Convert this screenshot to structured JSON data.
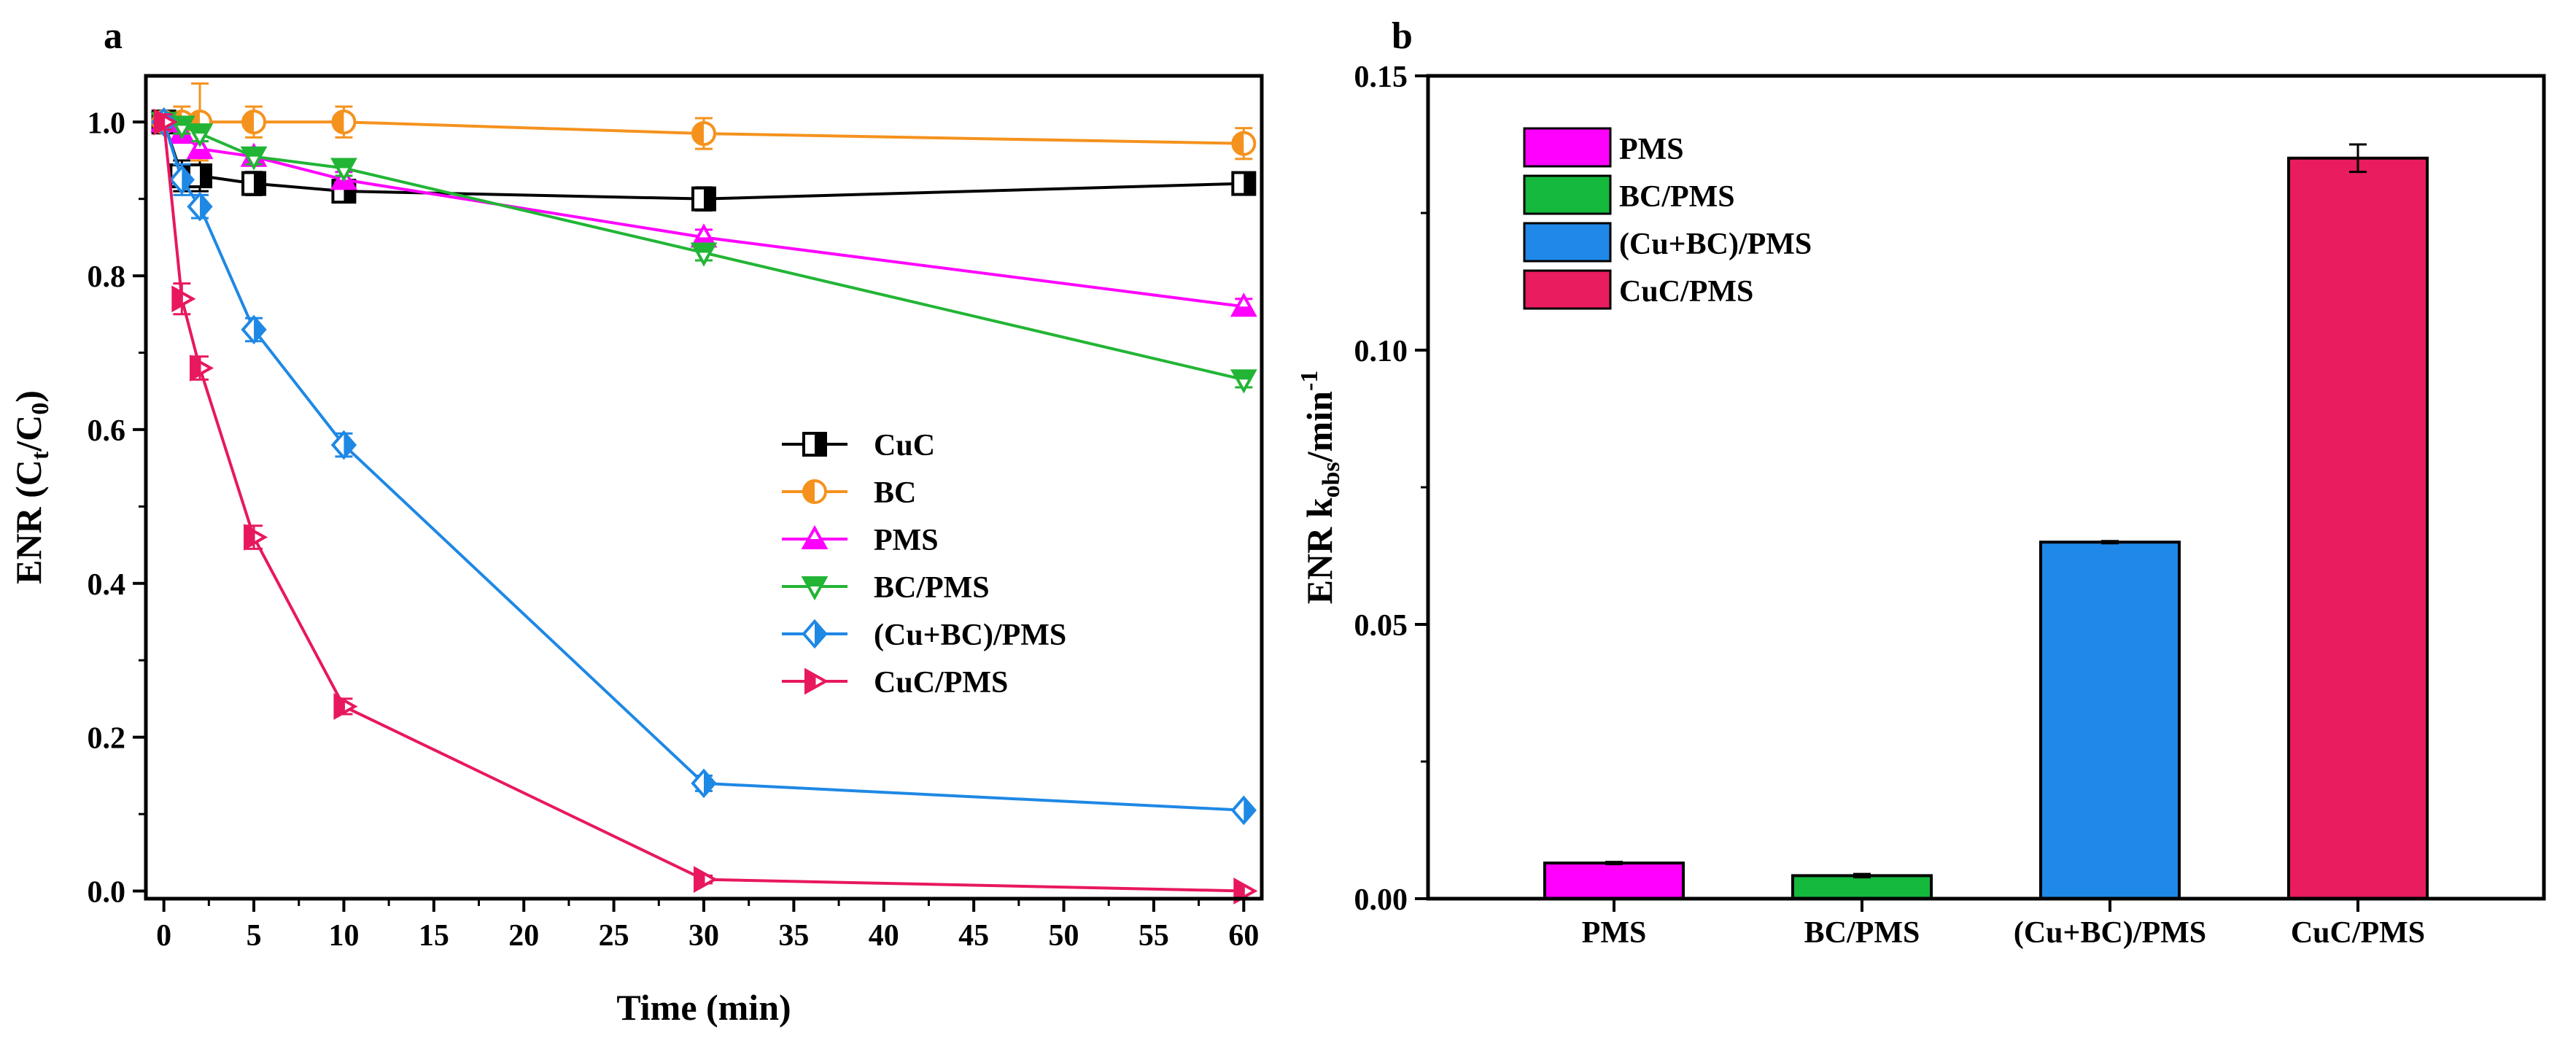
{
  "chart_data": [
    {
      "panel": "a",
      "type": "line",
      "xlabel": "Time (min)",
      "ylabel": "ENR (C",
      "ylabel_sub1": "t",
      "ylabel_mid": "/C",
      "ylabel_sub2": "0",
      "ylabel_end": ")",
      "xlim": [
        -1,
        61
      ],
      "ylim": [
        -0.01,
        1.06
      ],
      "xticks": [
        0,
        5,
        10,
        15,
        20,
        25,
        30,
        35,
        40,
        45,
        50,
        55,
        60
      ],
      "yticks": [
        0.0,
        0.2,
        0.4,
        0.6,
        0.8,
        1.0
      ],
      "ytick_labels": [
        "0.0",
        "0.2",
        "0.4",
        "0.6",
        "0.8",
        "1.0"
      ],
      "legend_position": "center-right",
      "series": [
        {
          "name": "CuC",
          "color": "#000000",
          "marker": "square-half",
          "x": [
            0,
            1,
            2,
            5,
            10,
            30,
            60
          ],
          "y": [
            1.0,
            0.93,
            0.93,
            0.92,
            0.91,
            0.9,
            0.92
          ],
          "err": [
            0.01,
            0.02,
            0.02,
            0.015,
            0.01,
            0.015,
            0.01
          ]
        },
        {
          "name": "BC",
          "color": "#f5921e",
          "marker": "circle-half",
          "x": [
            0,
            1,
            2,
            5,
            10,
            30,
            60
          ],
          "y": [
            1.0,
            1.0,
            1.0,
            1.0,
            1.0,
            0.985,
            0.972
          ],
          "err": [
            0.01,
            0.02,
            0.05,
            0.02,
            0.02,
            0.02,
            0.02
          ]
        },
        {
          "name": "PMS",
          "color": "#ff00ff",
          "marker": "triangle-up-half",
          "x": [
            0,
            1,
            2,
            5,
            10,
            30,
            60
          ],
          "y": [
            1.0,
            0.985,
            0.965,
            0.955,
            0.925,
            0.85,
            0.76
          ],
          "err": [
            0.01,
            0.01,
            0.01,
            0.01,
            0.01,
            0.01,
            0.01
          ]
        },
        {
          "name": "BC/PMS",
          "color": "#22b535",
          "marker": "triangle-down-half",
          "x": [
            0,
            1,
            2,
            5,
            10,
            30,
            60
          ],
          "y": [
            1.0,
            0.995,
            0.985,
            0.955,
            0.94,
            0.83,
            0.665
          ],
          "err": [
            0.01,
            0.01,
            0.01,
            0.01,
            0.01,
            0.01,
            0.01
          ]
        },
        {
          "name": "(Cu+BC)/PMS",
          "color": "#1e88e5",
          "marker": "diamond-half",
          "x": [
            0,
            1,
            2,
            5,
            10,
            30,
            60
          ],
          "y": [
            1.0,
            0.925,
            0.89,
            0.73,
            0.58,
            0.14,
            0.105
          ],
          "err": [
            0.01,
            0.02,
            0.015,
            0.015,
            0.015,
            0.01,
            0.005
          ]
        },
        {
          "name": "CuC/PMS",
          "color": "#e8185e",
          "marker": "triangle-right-half",
          "x": [
            0,
            1,
            2,
            5,
            10,
            30,
            60
          ],
          "y": [
            1.0,
            0.77,
            0.68,
            0.46,
            0.24,
            0.015,
            0.0
          ],
          "err": [
            0.01,
            0.02,
            0.015,
            0.015,
            0.01,
            0.005,
            0.002
          ]
        }
      ]
    },
    {
      "panel": "b",
      "type": "bar",
      "xlabel": "",
      "ylabel": "ENR k",
      "ylabel_sub": "obs",
      "ylabel_unit": "/min",
      "ylabel_sup": "-1",
      "ylim": [
        0,
        0.15
      ],
      "yticks": [
        0.0,
        0.05,
        0.1,
        0.15
      ],
      "ytick_labels": [
        "0.00",
        "0.05",
        "0.10",
        "0.15"
      ],
      "categories": [
        "PMS",
        "BC/PMS",
        "(Cu+BC)/PMS",
        "CuC/PMS"
      ],
      "values": [
        0.0065,
        0.0042,
        0.065,
        0.135
      ],
      "errors": [
        0.0002,
        0.0003,
        0.0002,
        0.0025
      ],
      "colors": [
        "#ff00ff",
        "#14b93d",
        "#1f88e8",
        "#e81c5e"
      ],
      "legend_position": "top-left",
      "legend": [
        "PMS",
        "BC/PMS",
        "(Cu+BC)/PMS",
        "CuC/PMS"
      ]
    }
  ]
}
